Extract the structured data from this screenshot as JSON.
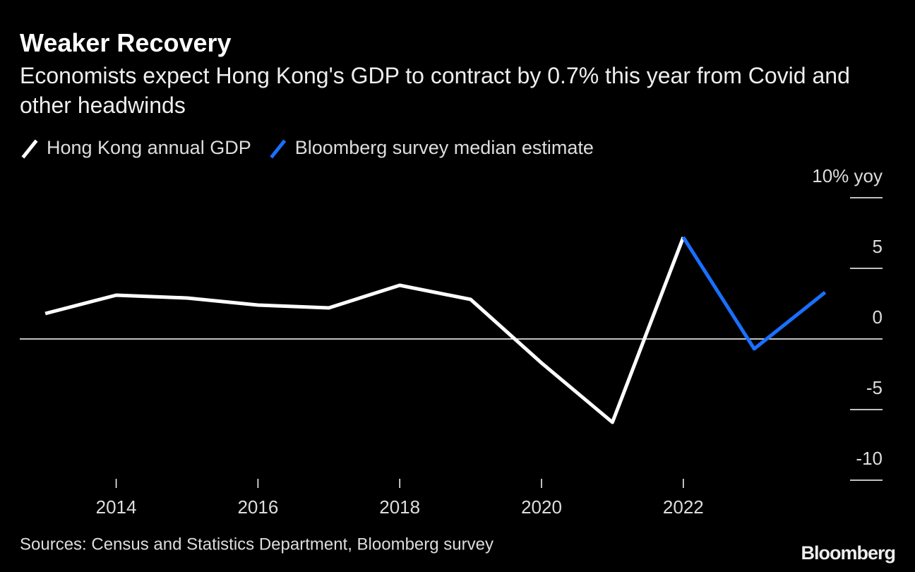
{
  "chart_data": {
    "type": "line",
    "title": "Weaker Recovery",
    "subtitle": "Economists expect Hong Kong's GDP to contract by 0.7% this year from Covid and other headwinds",
    "source": "Sources: Census and Statistics Department, Bloomberg survey",
    "brand": "Bloomberg",
    "x": [
      2013,
      2014,
      2015,
      2016,
      2017,
      2018,
      2019,
      2020,
      2021,
      2022,
      2023,
      2024
    ],
    "series": [
      {
        "name": "Hong Kong annual GDP",
        "color": "#ffffff",
        "values": [
          1.8,
          3.1,
          2.9,
          2.4,
          2.2,
          3.8,
          2.8,
          -1.7,
          -5.9,
          7.2,
          null,
          null
        ]
      },
      {
        "name": "Bloomberg survey median estimate",
        "color": "#1a6fff",
        "values": [
          null,
          null,
          null,
          null,
          null,
          null,
          null,
          null,
          null,
          7.2,
          -0.7,
          3.3
        ]
      }
    ],
    "xlim": [
      2012.64,
      2024.81
    ],
    "xticks": [
      2014,
      2016,
      2018,
      2020,
      2022
    ],
    "ylim": [
      -10,
      10
    ],
    "yticks": [
      {
        "value": 10,
        "label": "10% yoy"
      },
      5,
      0,
      -5,
      -10
    ]
  }
}
